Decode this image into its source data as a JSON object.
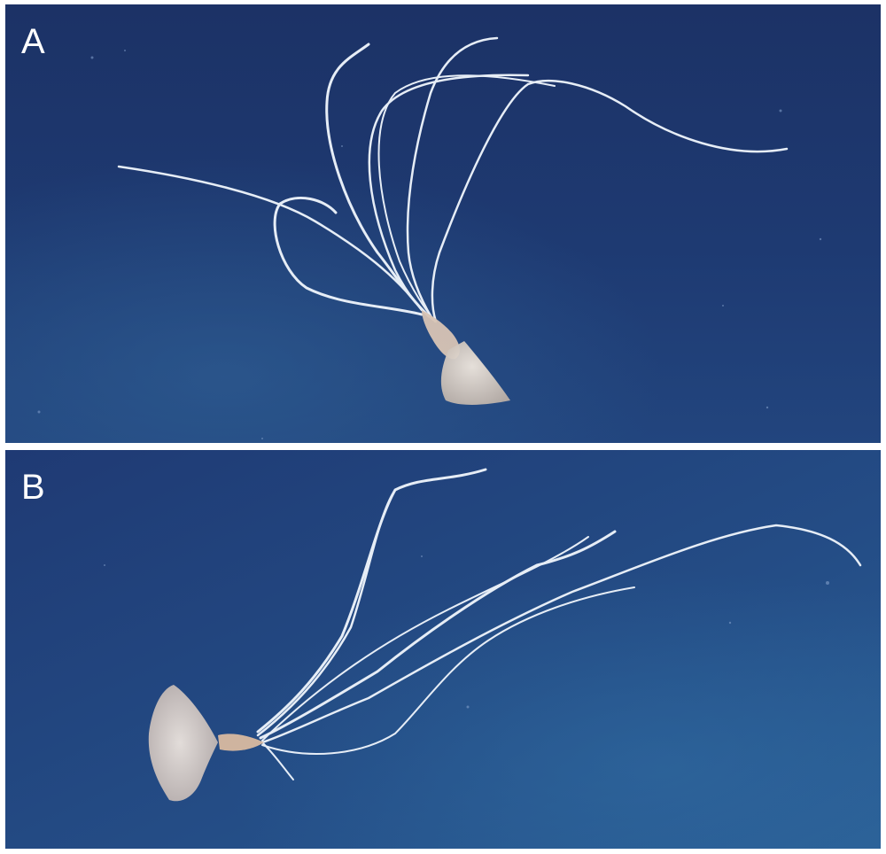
{
  "figure": {
    "panels": [
      {
        "label": "A",
        "subject": "squid-with-long-thin-arms"
      },
      {
        "label": "B",
        "subject": "squid-with-long-thin-arms"
      }
    ],
    "colors": {
      "background_water_top": "#1d3468",
      "background_water_bottom": "#2a5a8c",
      "arm_color": "#e9eef5",
      "body_color": "#d9cfc6",
      "label_color": "#ffffff"
    }
  }
}
